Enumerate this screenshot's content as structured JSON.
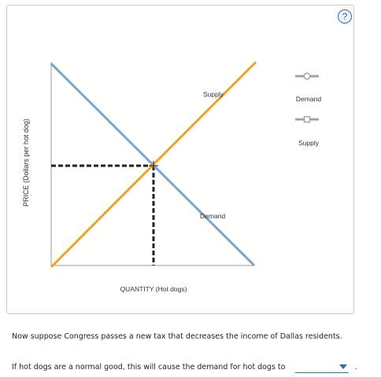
{
  "help": {
    "label": "?"
  },
  "graph": {
    "y_axis_label": "PRICE (Dollars per hot dog)",
    "x_axis_label": "QUANTITY (Hot dogs)",
    "curve_labels": {
      "supply": "Supply",
      "demand": "Demand"
    },
    "legend": [
      {
        "label": "Demand",
        "marker": "circle-icon",
        "color": "#9aa4ad"
      },
      {
        "label": "Supply",
        "marker": "square-icon",
        "color": "#9aa4ad"
      }
    ],
    "colors": {
      "demand_line": "#7ea6c6",
      "supply_line": "#f0a21e",
      "axes": "#999999",
      "dashed": "#222222"
    }
  },
  "question": {
    "scenario": "Now suppose Congress passes a new tax that decreases the income of Dallas residents.",
    "prompt": "If hot dogs are a normal good, this will cause the demand for hot dogs to",
    "dropdown_value": "",
    "period": "."
  }
}
